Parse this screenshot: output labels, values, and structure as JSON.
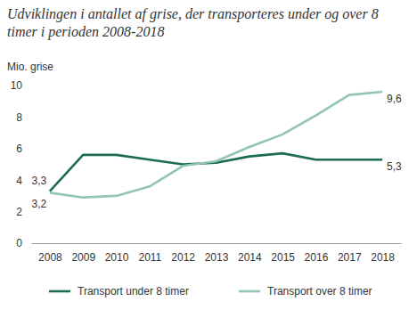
{
  "chart_data": {
    "type": "line",
    "title": "Udviklingen i antallet af grise, der transporteres under og over 8 timer i perioden 2008-2018",
    "y_label": "Mio. grise",
    "categories": [
      "2008",
      "2009",
      "2010",
      "2011",
      "2012",
      "2013",
      "2014",
      "2015",
      "2016",
      "2017",
      "2018"
    ],
    "series": [
      {
        "name": "Transport under 8 timer",
        "color": "#1d6b57",
        "values": [
          3.3,
          5.6,
          5.6,
          5.3,
          5.0,
          5.1,
          5.5,
          5.7,
          5.3,
          5.3,
          5.3
        ],
        "value_labels": [
          "3,3",
          null,
          null,
          null,
          null,
          null,
          null,
          null,
          null,
          null,
          "5,3"
        ]
      },
      {
        "name": "Transport over 8 timer",
        "color": "#93c6ae",
        "values": [
          3.2,
          2.9,
          3.0,
          3.6,
          4.9,
          5.2,
          6.1,
          6.9,
          8.1,
          9.4,
          9.6
        ],
        "value_labels": [
          "3,2",
          null,
          null,
          null,
          null,
          null,
          null,
          null,
          null,
          null,
          "9,6"
        ]
      }
    ],
    "ylim": [
      0,
      10
    ],
    "yticks": [
      0,
      2,
      4,
      6,
      8,
      10
    ],
    "grid": false,
    "data_labels": true,
    "legend": "bottom"
  }
}
